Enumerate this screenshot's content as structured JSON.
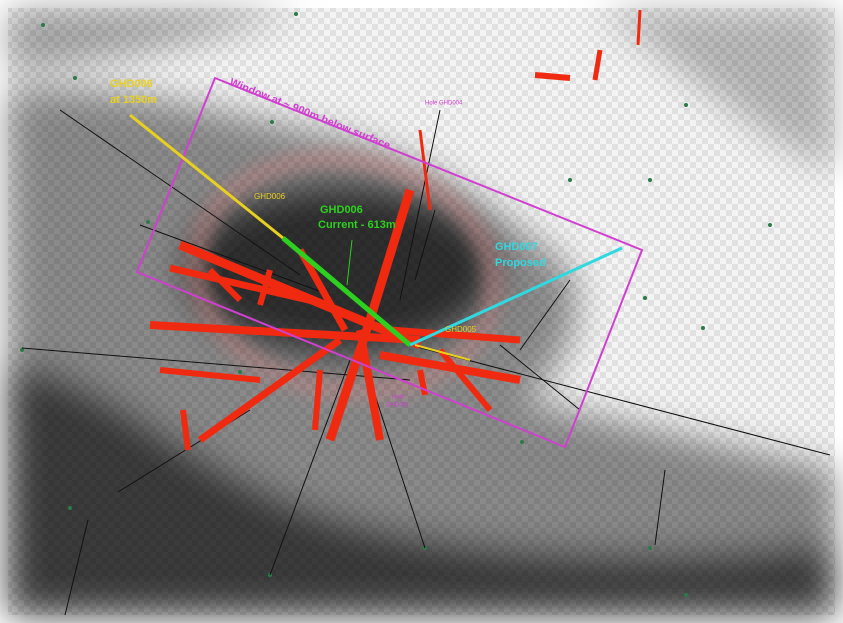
{
  "labels": {
    "ghd006_deep": [
      "GHD006",
      "at 1350m"
    ],
    "window": "Window at ~ 900m below surface",
    "hole_ghd004": "Hole GHD004",
    "ghd006_small": "GHD006",
    "ghd006_current": [
      "GHD006",
      "Current - 613m"
    ],
    "ghd007": [
      "GHD007",
      "Proposed"
    ],
    "ghd005": "GHD005",
    "hole_ghd001": [
      "Hole",
      "GHD001"
    ]
  }
}
